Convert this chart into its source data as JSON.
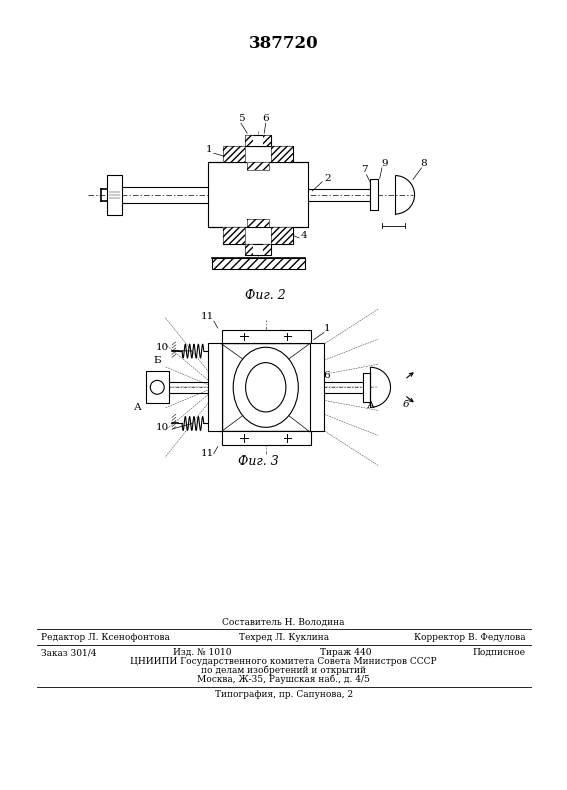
{
  "title": "387720",
  "bg_color": "#ffffff",
  "line_color": "#000000",
  "fig2_caption": "Фиг. 2",
  "fig3_caption": "Фиг. 3",
  "footer_line1": "Составитель Н. Володина",
  "footer_line2_left": "Редактор Л. Ксенофонтова",
  "footer_line2_mid": "Техред Л. Куклина",
  "footer_line2_right": "Корректор В. Федулова",
  "footer_line3_left": "Заказ 301/4",
  "footer_line3_mid1": "Изд. № 1010",
  "footer_line3_mid2": "Тираж 440",
  "footer_line3_right": "Подписное",
  "footer_line4": "ЦНИИПИ Государственного комитета Совета Министров СССР",
  "footer_line5": "по делам изобретений и открытий",
  "footer_line6": "Москва, Ж-35, Раушская наб., д. 4/5",
  "footer_line7": "Типография, пр. Сапунова, 2"
}
